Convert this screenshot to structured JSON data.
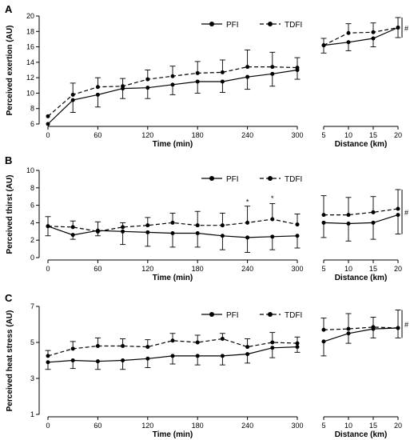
{
  "chart_data": [
    {
      "type": "line",
      "panel_label": "A",
      "ylabel": "Perceived exertion (AU)",
      "xlabel_time": "Time (min)",
      "xlabel_distance": "Distance (km)",
      "ylim": [
        6,
        20
      ],
      "yticks": [
        "6",
        "8",
        "10",
        "12",
        "14",
        "16",
        "18",
        "20"
      ],
      "ytick_values": [
        6,
        8,
        10,
        12,
        14,
        16,
        18,
        20
      ],
      "time_ticks": [
        "0",
        "60",
        "120",
        "180",
        "240",
        "300"
      ],
      "time_tick_values": [
        0,
        60,
        120,
        180,
        240,
        300
      ],
      "distance_ticks": [
        "5",
        "10",
        "15",
        "20"
      ],
      "distance_tick_values": [
        5,
        10,
        15,
        20
      ],
      "legend_position": "top-center",
      "significance_marker": "#",
      "annotations": [],
      "series": [
        {
          "name": "PFI",
          "style": "solid",
          "time_x": [
            0,
            30,
            60,
            90,
            120,
            150,
            180,
            210,
            240,
            270,
            300
          ],
          "time_y": [
            6.0,
            9.1,
            9.8,
            10.6,
            10.7,
            11.1,
            11.5,
            11.5,
            12.1,
            12.5,
            13.0
          ],
          "time_err": [
            0.0,
            1.6,
            1.6,
            1.3,
            1.4,
            1.3,
            1.5,
            1.4,
            1.6,
            1.6,
            1.2
          ],
          "distance_x": [
            5,
            10,
            15,
            20
          ],
          "distance_y": [
            16.2,
            16.6,
            17.1,
            18.5
          ],
          "distance_err": [
            1.0,
            1.1,
            1.1,
            1.3
          ]
        },
        {
          "name": "TDFI",
          "style": "dashed",
          "time_x": [
            0,
            30,
            60,
            90,
            120,
            150,
            180,
            210,
            240,
            270,
            300
          ],
          "time_y": [
            7.0,
            9.8,
            10.8,
            10.9,
            11.8,
            12.2,
            12.6,
            12.7,
            13.4,
            13.4,
            13.3
          ],
          "time_err": [
            0.0,
            1.5,
            1.2,
            1.0,
            1.2,
            1.3,
            1.5,
            1.6,
            2.2,
            1.9,
            1.3
          ],
          "distance_x": [
            5,
            10,
            15,
            20
          ],
          "distance_y": [
            16.2,
            17.8,
            17.9,
            18.5
          ],
          "distance_err": [
            0.9,
            1.2,
            1.2,
            1.3
          ]
        }
      ]
    },
    {
      "type": "line",
      "panel_label": "B",
      "ylabel": "Perceived thirst (AU)",
      "xlabel_time": "Time (min)",
      "xlabel_distance": "Distance (km)",
      "ylim": [
        0,
        10
      ],
      "yticks": [
        "0",
        "2",
        "4",
        "6",
        "8",
        "10"
      ],
      "ytick_values": [
        0,
        2,
        4,
        6,
        8,
        10
      ],
      "time_ticks": [
        "0",
        "60",
        "120",
        "180",
        "240",
        "300"
      ],
      "time_tick_values": [
        0,
        60,
        120,
        180,
        240,
        300
      ],
      "distance_ticks": [
        "5",
        "10",
        "15",
        "20"
      ],
      "distance_tick_values": [
        5,
        10,
        15,
        20
      ],
      "legend_position": "top-center",
      "significance_marker": "#",
      "annotations": [
        {
          "text": "*",
          "x": 240,
          "y": 6.1
        },
        {
          "text": "*",
          "x": 270,
          "y": 6.5
        }
      ],
      "series": [
        {
          "name": "PFI",
          "style": "solid",
          "time_x": [
            0,
            30,
            60,
            90,
            120,
            150,
            180,
            210,
            240,
            270,
            300
          ],
          "time_y": [
            3.6,
            2.6,
            3.1,
            3.0,
            2.9,
            2.8,
            2.8,
            2.5,
            2.3,
            2.4,
            2.5
          ],
          "time_err": [
            1.1,
            0.5,
            0.6,
            1.5,
            1.6,
            1.6,
            1.6,
            1.6,
            1.7,
            1.5,
            1.4
          ],
          "distance_x": [
            5,
            10,
            15,
            20
          ],
          "distance_y": [
            4.0,
            3.9,
            4.0,
            4.9
          ],
          "distance_err": [
            1.7,
            2.0,
            1.9,
            2.2
          ]
        },
        {
          "name": "TDFI",
          "style": "dashed",
          "time_x": [
            0,
            30,
            60,
            90,
            120,
            150,
            180,
            210,
            240,
            270,
            300
          ],
          "time_y": [
            3.6,
            3.5,
            3.0,
            3.5,
            3.7,
            4.0,
            3.7,
            3.7,
            4.0,
            4.4,
            3.8
          ],
          "time_err": [
            1.1,
            0.7,
            1.1,
            0.5,
            0.9,
            1.1,
            1.6,
            1.4,
            1.9,
            1.8,
            1.2
          ],
          "distance_x": [
            5,
            10,
            15,
            20
          ],
          "distance_y": [
            4.9,
            4.9,
            5.2,
            5.6
          ],
          "distance_err": [
            2.2,
            2.0,
            1.8,
            2.2
          ]
        }
      ]
    },
    {
      "type": "line",
      "panel_label": "C",
      "ylabel": "Perceived heat stress (AU)",
      "xlabel_time": "Time (min)",
      "xlabel_distance": "Distance (km)",
      "ylim": [
        1,
        7
      ],
      "yticks": [
        "1",
        "3",
        "5",
        "7"
      ],
      "ytick_values": [
        1,
        3,
        5,
        7
      ],
      "time_ticks": [
        "0",
        "60",
        "120",
        "180",
        "240",
        "300"
      ],
      "time_tick_values": [
        0,
        60,
        120,
        180,
        240,
        300
      ],
      "distance_ticks": [
        "5",
        "10",
        "15",
        "20"
      ],
      "distance_tick_values": [
        5,
        10,
        15,
        20
      ],
      "legend_position": "top-center",
      "significance_marker": "#",
      "annotations": [],
      "series": [
        {
          "name": "PFI",
          "style": "solid",
          "time_x": [
            0,
            30,
            60,
            90,
            120,
            150,
            180,
            210,
            240,
            270,
            300
          ],
          "time_y": [
            3.9,
            4.0,
            3.95,
            4.0,
            4.1,
            4.25,
            4.25,
            4.25,
            4.35,
            4.7,
            4.75
          ],
          "time_err": [
            0.4,
            0.45,
            0.45,
            0.5,
            0.5,
            0.45,
            0.5,
            0.5,
            0.5,
            0.55,
            0.3
          ],
          "distance_x": [
            5,
            10,
            15,
            20
          ],
          "distance_y": [
            5.05,
            5.5,
            5.75,
            5.8
          ],
          "distance_err": [
            0.8,
            0.55,
            0.5,
            0.55
          ]
        },
        {
          "name": "TDFI",
          "style": "dashed",
          "time_x": [
            0,
            30,
            60,
            90,
            120,
            150,
            180,
            210,
            240,
            270,
            300
          ],
          "time_y": [
            4.25,
            4.65,
            4.8,
            4.8,
            4.75,
            5.1,
            5.0,
            5.2,
            4.75,
            5.0,
            4.95
          ],
          "time_err": [
            0.3,
            0.4,
            0.45,
            0.4,
            0.4,
            0.4,
            0.4,
            0.3,
            0.45,
            0.55,
            0.35
          ],
          "distance_x": [
            5,
            10,
            15,
            20
          ],
          "distance_y": [
            5.7,
            5.75,
            5.85,
            5.8
          ],
          "distance_err": [
            0.65,
            0.85,
            0.55,
            1.0
          ]
        }
      ]
    }
  ]
}
